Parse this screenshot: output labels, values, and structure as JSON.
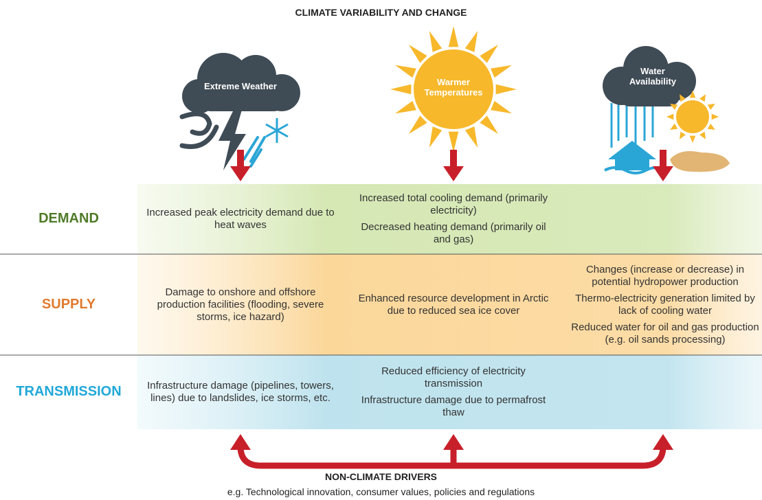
{
  "title": "CLIMATE VARIABILITY AND CHANGE",
  "drivers": [
    {
      "label": "Extreme Weather"
    },
    {
      "label": "Warmer Temperatures"
    },
    {
      "label": "Water Availability"
    }
  ],
  "rows": [
    {
      "label": "DEMAND",
      "cells": [
        [
          "Increased peak electricity demand due to heat waves"
        ],
        [
          "Increased total cooling demand (primarily electricity)",
          "Decreased heating demand (primarily oil and gas)"
        ],
        []
      ]
    },
    {
      "label": "SUPPLY",
      "cells": [
        [
          "Damage to onshore and offshore production facilities (flooding, severe storms, ice hazard)"
        ],
        [
          "Enhanced resource development in Arctic due to reduced sea ice cover"
        ],
        [
          "Changes (increase or decrease) in potential hydropower production",
          "Thermo-electricity generation limited by lack of cooling water",
          "Reduced water for oil and gas production (e.g. oil sands processing)"
        ]
      ]
    },
    {
      "label": "TRANSMISSION",
      "cells": [
        [
          "Infrastructure damage (pipelines, towers, lines) due to landslides, ice storms, etc."
        ],
        [
          "Reduced efficiency of electricity transmission",
          "Infrastructure damage due to permafrost thaw"
        ],
        []
      ]
    }
  ],
  "footer": {
    "title": "NON-CLIMATE DRIVERS",
    "subtitle": "e.g. Technological innovation, consumer values, policies and regulations"
  }
}
